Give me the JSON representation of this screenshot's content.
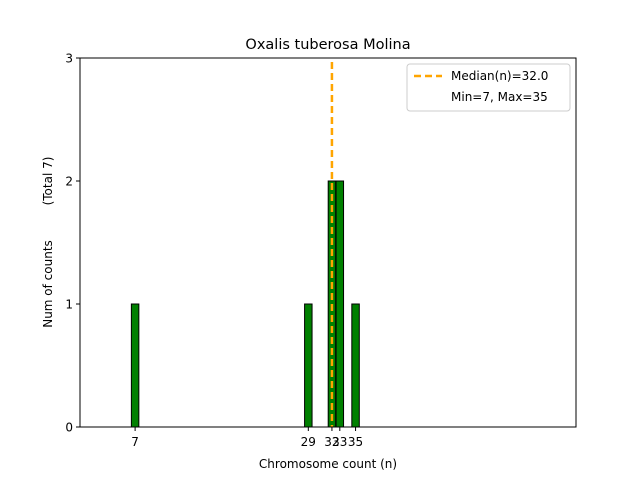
{
  "chart_data": {
    "type": "bar",
    "title": "Oxalis tuberosa Molina",
    "xlabel": "Chromosome count (n)",
    "ylabel": "Num of counts",
    "ylabel_total": "(Total 7)",
    "x": [
      7,
      29,
      32,
      33,
      35
    ],
    "values": [
      1,
      1,
      2,
      2,
      1
    ],
    "x_ticks": [
      7,
      29,
      32,
      33,
      35
    ],
    "x_tick_labels": [
      "7",
      "29",
      "32",
      "33",
      "35"
    ],
    "y_ticks": [
      0,
      1,
      2,
      3
    ],
    "y_tick_labels": [
      "0",
      "1",
      "2",
      "3"
    ],
    "xlim": [
      0,
      63
    ],
    "ylim": [
      0,
      3
    ],
    "median": 32.0,
    "legend": {
      "placement": "top-right",
      "median_label": "Median(n)=32.0",
      "minmax_label": "Min=7, Max=35"
    },
    "colors": {
      "bar": "#008000",
      "bar_edge": "#000000",
      "median_line": "#ffa500"
    }
  }
}
